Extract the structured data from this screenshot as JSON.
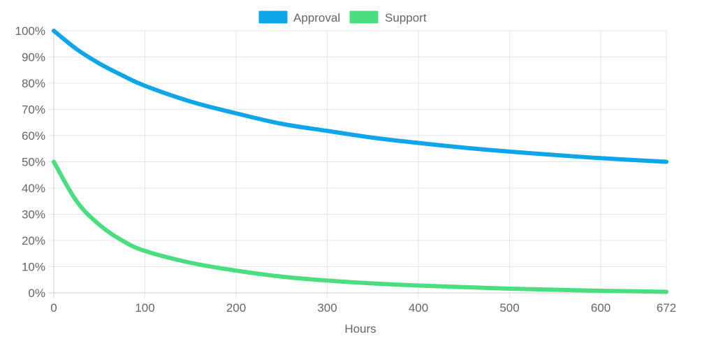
{
  "chart_data": {
    "type": "line",
    "xlabel": "Hours",
    "ylabel": "",
    "xlim": [
      0,
      672
    ],
    "ylim": [
      0,
      100
    ],
    "x_ticks": [
      0,
      100,
      200,
      300,
      400,
      500,
      600,
      672
    ],
    "x_tick_labels": [
      "0",
      "100",
      "200",
      "300",
      "400",
      "500",
      "600",
      "672"
    ],
    "y_ticks": [
      0,
      10,
      20,
      30,
      40,
      50,
      60,
      70,
      80,
      90,
      100
    ],
    "y_tick_labels": [
      "0%",
      "10%",
      "20%",
      "30%",
      "40%",
      "50%",
      "60%",
      "70%",
      "80%",
      "90%",
      "100%"
    ],
    "grid": true,
    "legend_position": "top-center",
    "x": [
      0,
      25,
      50,
      75,
      100,
      150,
      200,
      250,
      300,
      350,
      400,
      450,
      500,
      550,
      600,
      672
    ],
    "series": [
      {
        "name": "Approval",
        "color": "#0ea5e9",
        "values": [
          100,
          93,
          87.5,
          83,
          79,
          73,
          68.5,
          64.5,
          61.8,
          59.2,
          57.2,
          55.4,
          53.9,
          52.6,
          51.4,
          50
        ]
      },
      {
        "name": "Support",
        "color": "#4ade80",
        "values": [
          50,
          35,
          26,
          20,
          16,
          11.5,
          8.5,
          6.2,
          4.7,
          3.6,
          2.8,
          2.2,
          1.6,
          1.2,
          0.8,
          0.4
        ]
      }
    ]
  }
}
